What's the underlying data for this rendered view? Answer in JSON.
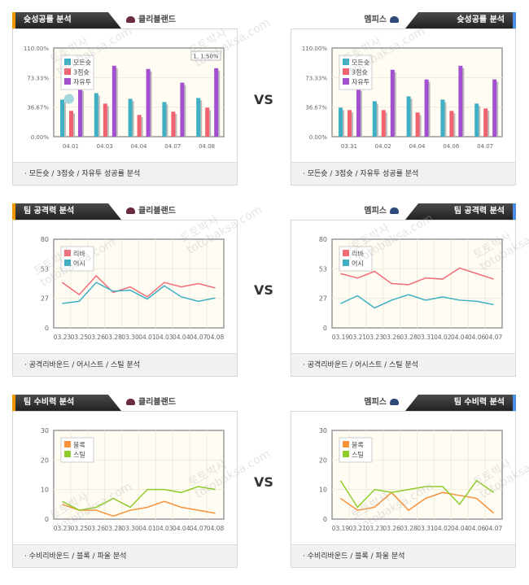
{
  "vs_label": "VS",
  "watermark": [
    "토토박사",
    "totobaksa.com"
  ],
  "teams": {
    "left": "클리블랜드",
    "right": "멤피스"
  },
  "colors": {
    "left_accent": "#f39800",
    "right_accent": "#4a8fe6"
  },
  "panels": [
    {
      "title": "슛성공률 분석",
      "team": "클리블랜드",
      "side": "l",
      "footer": "·  모든슛 / 3점슛 / 자유투 성공률 분석",
      "tooltip": "1, 1.50%"
    },
    {
      "title": "슛성공률 분석",
      "team": "멤피스",
      "side": "r",
      "footer": "·  모든슛 / 3점슛 / 자유투 성공률 분석"
    },
    {
      "title": "팀 공격력 분석",
      "team": "클리블랜드",
      "side": "l",
      "footer": "· 공격리바운드 / 어시스트 / 스틸 분석"
    },
    {
      "title": "팀 공격력 분석",
      "team": "멤피스",
      "side": "r",
      "footer": "·  공격리바운드 / 어시스트 / 스틸 분석"
    },
    {
      "title": "팀 수비력 분석",
      "team": "클리블랜드",
      "side": "l",
      "footer": "· 수비리바운드 / 블록 / 파울 분석"
    },
    {
      "title": "팀 수비력 분석",
      "team": "멤피스",
      "side": "r",
      "footer": "·  수비리바운드 / 블록 / 파울 분석"
    }
  ],
  "chart_data": [
    {
      "type": "bar",
      "title": "슛성공률 분석 - 클리블랜드",
      "categories": [
        "04.01",
        "04.03",
        "04.04",
        "04.07",
        "04.08"
      ],
      "yticks": [
        "0.00%",
        "36.67%",
        "73.33%",
        "110.00%"
      ],
      "ylim": [
        0,
        110
      ],
      "series": [
        {
          "name": "모든슛",
          "color": "#3fb0c4",
          "values": [
            46,
            54,
            47,
            43,
            48
          ]
        },
        {
          "name": "3점슛",
          "color": "#f2626f",
          "values": [
            32,
            41,
            27,
            31,
            36
          ]
        },
        {
          "name": "자유투",
          "color": "#a24fd0",
          "values": [
            60,
            88,
            84,
            67,
            85
          ]
        }
      ],
      "legend": "top-left"
    },
    {
      "type": "bar",
      "title": "슛성공률 분석 - 멤피스",
      "categories": [
        "03.31",
        "04.02",
        "04.04",
        "04.06",
        "04.07"
      ],
      "yticks": [
        "0.00%",
        "36.67%",
        "73.33%",
        "110.00%"
      ],
      "ylim": [
        0,
        110
      ],
      "series": [
        {
          "name": "모든슛",
          "color": "#3fb0c4",
          "values": [
            36,
            44,
            50,
            46,
            41
          ]
        },
        {
          "name": "3점슛",
          "color": "#f2626f",
          "values": [
            33,
            33,
            30,
            32,
            35
          ]
        },
        {
          "name": "자유투",
          "color": "#a24fd0",
          "values": [
            60,
            83,
            71,
            88,
            71
          ]
        }
      ],
      "legend": "top-left"
    },
    {
      "type": "line",
      "title": "팀 공격력 분석 - 클리블랜드",
      "categories": [
        "03.23",
        "03.25",
        "03.26",
        "03.28",
        "03.30",
        "04.01",
        "04.03",
        "04.04",
        "04.07",
        "04.08"
      ],
      "yticks": [
        "0",
        "27",
        "53",
        "80"
      ],
      "ylim": [
        0,
        80
      ],
      "series": [
        {
          "name": "리바",
          "color": "#f26c78",
          "values": [
            41,
            30,
            47,
            32,
            37,
            28,
            41,
            37,
            40,
            36
          ]
        },
        {
          "name": "어시",
          "color": "#3fb0c4",
          "values": [
            22,
            24,
            41,
            33,
            34,
            26,
            38,
            28,
            24,
            27
          ]
        }
      ],
      "legend": "top-left"
    },
    {
      "type": "line",
      "title": "팀 공격력 분석 - 멤피스",
      "categories": [
        "03.19",
        "03.21",
        "03.23",
        "03.26",
        "03.28",
        "03.31",
        "04.02",
        "04.04",
        "04.06",
        "04.07"
      ],
      "yticks": [
        "0",
        "27",
        "53",
        "80"
      ],
      "ylim": [
        0,
        80
      ],
      "series": [
        {
          "name": "리바",
          "color": "#f26c78",
          "values": [
            49,
            45,
            51,
            40,
            39,
            45,
            44,
            54,
            49,
            44
          ]
        },
        {
          "name": "어시",
          "color": "#3fb0c4",
          "values": [
            22,
            29,
            18,
            25,
            30,
            25,
            28,
            25,
            24,
            21
          ]
        }
      ],
      "legend": "top-left"
    },
    {
      "type": "line",
      "title": "팀 수비력 분석 - 클리블랜드",
      "categories": [
        "03.23",
        "03.25",
        "03.26",
        "03.28",
        "03.30",
        "04.01",
        "04.03",
        "04.04",
        "04.07",
        "04.08"
      ],
      "yticks": [
        "0",
        "10",
        "20",
        "30"
      ],
      "ylim": [
        0,
        30
      ],
      "series": [
        {
          "name": "블록",
          "color": "#f7913a",
          "values": [
            5,
            3,
            3,
            1,
            3,
            4,
            6,
            4,
            3,
            2
          ]
        },
        {
          "name": "스틸",
          "color": "#8dcc2a",
          "values": [
            6,
            3,
            4,
            7,
            4,
            10,
            10,
            9,
            11,
            10
          ]
        }
      ],
      "legend": "top-left"
    },
    {
      "type": "line",
      "title": "팀 수비력 분석 - 멤피스",
      "categories": [
        "03.19",
        "03.21",
        "03.23",
        "03.26",
        "03.28",
        "03.31",
        "04.02",
        "04.04",
        "04.06",
        "04.07"
      ],
      "yticks": [
        "0",
        "10",
        "20",
        "30"
      ],
      "ylim": [
        0,
        30
      ],
      "series": [
        {
          "name": "블록",
          "color": "#f7913a",
          "values": [
            7,
            3,
            4,
            9,
            3,
            7,
            9,
            8,
            7,
            2
          ]
        },
        {
          "name": "스틸",
          "color": "#8dcc2a",
          "values": [
            13,
            4,
            10,
            9,
            10,
            11,
            11,
            5,
            13,
            9
          ]
        }
      ],
      "legend": "top-left"
    }
  ]
}
